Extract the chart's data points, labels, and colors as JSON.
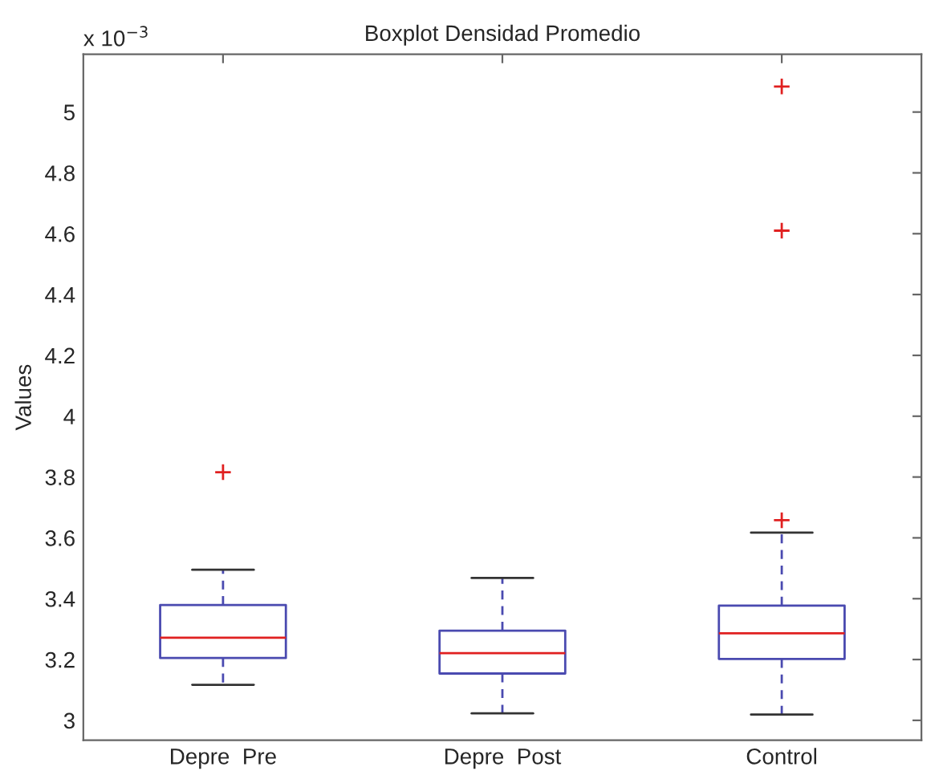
{
  "chart_data": {
    "type": "box",
    "title": "Boxplot Densidad Promedio",
    "ylabel": "Values",
    "annotations": [
      "x 10$^{−3}$"
    ],
    "categories": [
      "Depre  Pre",
      "Depre  Post",
      "Control"
    ],
    "series": [
      {
        "color": "#4a4ab0",
        "boxes": [
          {
            "low": 3.117,
            "q1": 3.205,
            "median": 3.272,
            "q3": 3.379,
            "high": 3.495,
            "outliers": [
              3.816
            ]
          },
          {
            "low": 3.023,
            "q1": 3.154,
            "median": 3.221,
            "q3": 3.295,
            "high": 3.468
          },
          {
            "low": 3.019,
            "q1": 3.202,
            "median": 3.286,
            "q3": 3.377,
            "high": 3.617,
            "outliers": [
              3.658,
              4.61,
              5.084
            ]
          }
        ]
      }
    ],
    "ylim": [
      2.935,
      5.19
    ],
    "yticks": [
      3,
      3.2,
      3.4,
      3.6,
      3.8,
      4,
      4.2,
      4.4,
      4.6,
      4.8,
      5
    ],
    "grid": false
  }
}
